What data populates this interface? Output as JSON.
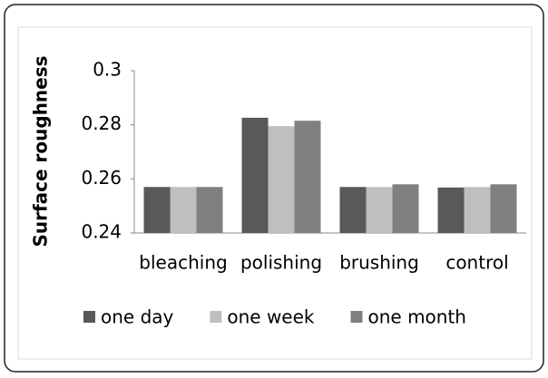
{
  "chart_data": {
    "type": "bar",
    "y_label": "Surface roughness",
    "categories": [
      "bleaching",
      "polishing",
      "brushing",
      "control"
    ],
    "series": [
      {
        "name": "one day",
        "color": "#595959",
        "values": [
          0.257,
          0.2826,
          0.257,
          0.2568
        ]
      },
      {
        "name": "one week",
        "color": "#bfbfbf",
        "values": [
          0.257,
          0.2795,
          0.257,
          0.257
        ]
      },
      {
        "name": "one month",
        "color": "#808080",
        "values": [
          0.257,
          0.2815,
          0.258,
          0.258
        ]
      }
    ],
    "ylim": [
      0.24,
      0.3
    ],
    "yticks": [
      0.24,
      0.26,
      0.28,
      0.3
    ],
    "grid": false,
    "legend": "bottom"
  }
}
